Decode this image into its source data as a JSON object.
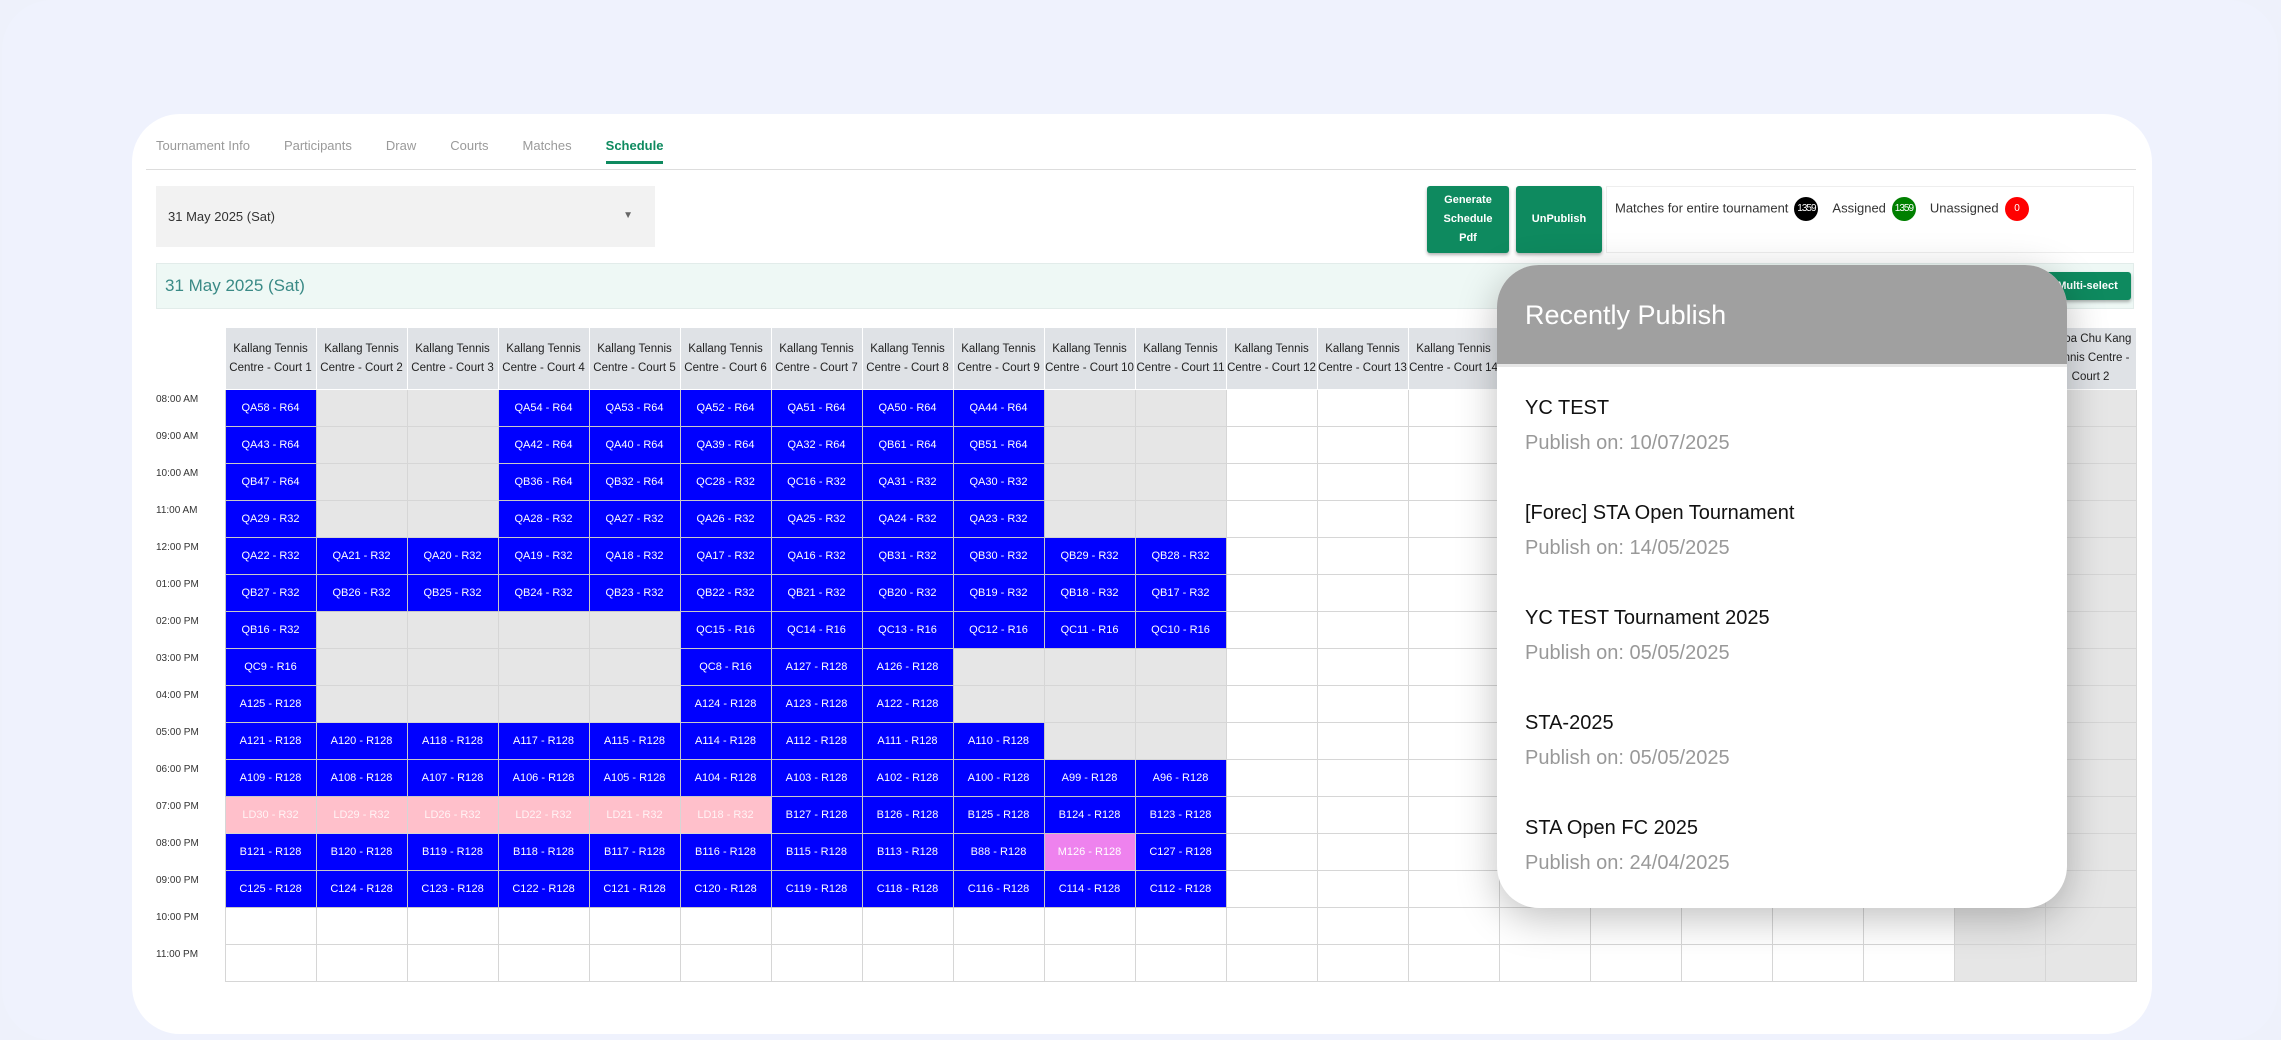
{
  "tabs": [
    {
      "label": "Tournament Info"
    },
    {
      "label": "Participants"
    },
    {
      "label": "Draw"
    },
    {
      "label": "Courts"
    },
    {
      "label": "Matches"
    },
    {
      "label": "Schedule",
      "active": true
    }
  ],
  "date_select": {
    "value": "31 May 2025 (Sat)",
    "icon": "caret-down-icon"
  },
  "buttons": {
    "generate_pdf": "Generate Schedule Pdf",
    "unpublish": "UnPublish",
    "multi_select": "Multi-select"
  },
  "stats": {
    "total_label": "Matches for entire tournament",
    "total": "1359",
    "assigned_label": "Assigned",
    "assigned": "1359",
    "unassigned_label": "Unassigned",
    "unassigned": "0"
  },
  "day_title": "31 May 2025 (Sat)",
  "colors": {
    "accent": "#0e8a5f",
    "match": "#0000ff",
    "pink": "#ffc0cb",
    "violet": "#ee82ee",
    "unavailable": "#e6e6e6",
    "total_badge": "#000000",
    "assigned_badge": "#008000",
    "unassigned_badge": "#ff0000"
  },
  "columns": [
    {
      "header": "Kallang Tennis Centre - Court 1"
    },
    {
      "header": "Kallang Tennis Centre - Court 2"
    },
    {
      "header": "Kallang Tennis Centre - Court 3"
    },
    {
      "header": "Kallang Tennis Centre - Court 4"
    },
    {
      "header": "Kallang Tennis Centre - Court 5"
    },
    {
      "header": "Kallang Tennis Centre - Court 6"
    },
    {
      "header": "Kallang Tennis Centre - Court 7"
    },
    {
      "header": "Kallang Tennis Centre - Court 8"
    },
    {
      "header": "Kallang Tennis Centre - Court 9"
    },
    {
      "header": "Kallang Tennis Centre - Court 10"
    },
    {
      "header": "Kallang Tennis Centre - Court 11"
    },
    {
      "header": "Kallang Tennis Centre - Court 12"
    },
    {
      "header": "Kallang Tennis Centre - Court 13"
    },
    {
      "header": "Kallang Tennis Centre - Court 14"
    },
    {
      "header": ""
    },
    {
      "header": ""
    },
    {
      "header": ""
    },
    {
      "header": ""
    },
    {
      "header": ""
    },
    {
      "header": "",
      "default": "~"
    },
    {
      "header": "Choa Chu Kang Tennis Centre - Court 2",
      "default": "~"
    }
  ],
  "rows": [
    {
      "time": "08:00 AM",
      "cells": [
        "QA58 - R64",
        "~",
        "~",
        "QA54 - R64",
        "QA53 - R64",
        "QA52 - R64",
        "QA51 - R64",
        "QA50 - R64",
        "QA44 - R64",
        "~",
        "~"
      ]
    },
    {
      "time": "09:00 AM",
      "cells": [
        "QA43 - R64",
        "~",
        "~",
        "QA42 - R64",
        "QA40 - R64",
        "QA39 - R64",
        "QA32 - R64",
        "QB61 - R64",
        "QB51 - R64",
        "~",
        "~"
      ]
    },
    {
      "time": "10:00 AM",
      "cells": [
        "QB47 - R64",
        "~",
        "~",
        "QB36 - R64",
        "QB32 - R64",
        "QC28 - R32",
        "QC16 - R32",
        "QA31 - R32",
        "QA30 - R32",
        "~",
        "~"
      ]
    },
    {
      "time": "11:00 AM",
      "cells": [
        "QA29 - R32",
        "~",
        "~",
        "QA28 - R32",
        "QA27 - R32",
        "QA26 - R32",
        "QA25 - R32",
        "QA24 - R32",
        "QA23 - R32",
        "~",
        "~"
      ]
    },
    {
      "time": "12:00 PM",
      "cells": [
        "QA22 - R32",
        "QA21 - R32",
        "QA20 - R32",
        "QA19 - R32",
        "QA18 - R32",
        "QA17 - R32",
        "QA16 - R32",
        "QB31 - R32",
        "QB30 - R32",
        "QB29 - R32",
        "QB28 - R32"
      ]
    },
    {
      "time": "01:00 PM",
      "cells": [
        "QB27 - R32",
        "QB26 - R32",
        "QB25 - R32",
        "QB24 - R32",
        "QB23 - R32",
        "QB22 - R32",
        "QB21 - R32",
        "QB20 - R32",
        "QB19 - R32",
        "QB18 - R32",
        "QB17 - R32"
      ]
    },
    {
      "time": "02:00 PM",
      "cells": [
        "QB16 - R32",
        "~",
        "~",
        "~",
        "~",
        "QC15 - R16",
        "QC14 - R16",
        "QC13 - R16",
        "QC12 - R16",
        "QC11 - R16",
        "QC10 - R16"
      ]
    },
    {
      "time": "03:00 PM",
      "cells": [
        "QC9 - R16",
        "~",
        "~",
        "~",
        "~",
        "QC8 - R16",
        "A127 - R128",
        "A126 - R128",
        "~",
        "~",
        "~"
      ]
    },
    {
      "time": "04:00 PM",
      "cells": [
        "A125 - R128",
        "~",
        "~",
        "~",
        "~",
        "A124 - R128",
        "A123 - R128",
        "A122 - R128",
        "~",
        "~",
        "~"
      ]
    },
    {
      "time": "05:00 PM",
      "cells": [
        "A121 - R128",
        "A120 - R128",
        "A118 - R128",
        "A117 - R128",
        "A115 - R128",
        "A114 - R128",
        "A112 - R128",
        "A111 - R128",
        "A110 - R128",
        "~",
        "~"
      ]
    },
    {
      "time": "06:00 PM",
      "cells": [
        "A109 - R128",
        "A108 - R128",
        "A107 - R128",
        "A106 - R128",
        "A105 - R128",
        "A104 - R128",
        "A103 - R128",
        "A102 - R128",
        "A100 - R128",
        "A99 - R128",
        "A96 - R128"
      ]
    },
    {
      "time": "07:00 PM",
      "cells": [
        {
          "t": "LD30 - R32",
          "c": "pink"
        },
        {
          "t": "LD29 - R32",
          "c": "pink"
        },
        {
          "t": "LD26 - R32",
          "c": "pink"
        },
        {
          "t": "LD22 - R32",
          "c": "pink"
        },
        {
          "t": "LD21 - R32",
          "c": "pink"
        },
        {
          "t": "LD18 - R32",
          "c": "pink"
        },
        "B127 - R128",
        "B126 - R128",
        "B125 - R128",
        "B124 - R128",
        "B123 - R128"
      ]
    },
    {
      "time": "08:00 PM",
      "cells": [
        "B121 - R128",
        "B120 - R128",
        "B119 - R128",
        "B118 - R128",
        "B117 - R128",
        "B116 - R128",
        "B115 - R128",
        "B113 - R128",
        "B88 - R128",
        {
          "t": "M126 - R128",
          "c": "violet"
        },
        "C127 - R128"
      ]
    },
    {
      "time": "09:00 PM",
      "cells": [
        "C125 - R128",
        "C124 - R128",
        "C123 - R128",
        "C122 - R128",
        "C121 - R128",
        "C120 - R128",
        "C119 - R128",
        "C118 - R128",
        "C116 - R128",
        "C114 - R128",
        "C112 - R128"
      ]
    },
    {
      "time": "10:00 PM",
      "cells": []
    },
    {
      "time": "11:00 PM",
      "cells": []
    }
  ],
  "popup": {
    "title": "Recently Publish",
    "items": [
      {
        "name": "YC TEST",
        "date": "Publish on: 10/07/2025"
      },
      {
        "name": "[Forec] STA Open Tournament",
        "date": "Publish on: 14/05/2025"
      },
      {
        "name": "YC TEST Tournament 2025",
        "date": "Publish on: 05/05/2025"
      },
      {
        "name": "STA-2025",
        "date": "Publish on: 05/05/2025"
      },
      {
        "name": "STA Open FC 2025",
        "date": "Publish on: 24/04/2025"
      }
    ]
  }
}
